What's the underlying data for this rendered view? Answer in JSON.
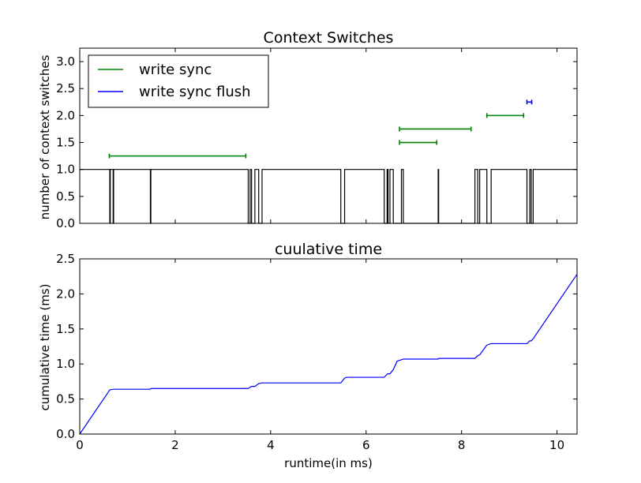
{
  "chart_data": [
    {
      "type": "line",
      "title": "Context Switches",
      "xlabel": "",
      "ylabel": "number of context switches",
      "xlim": [
        0,
        10.42
      ],
      "ylim": [
        0,
        3.25
      ],
      "yticks": [
        "0.0",
        "0.5",
        "1.0",
        "1.5",
        "2.0",
        "2.5",
        "3.0"
      ],
      "legend": {
        "position": "top-left",
        "entries": [
          {
            "label": "write sync",
            "color": "#008000"
          },
          {
            "label": "write sync flush",
            "color": "#0000ff"
          }
        ]
      },
      "series": [
        {
          "color": "#000000",
          "kind": "step",
          "x": [
            0,
            0.63,
            0.63,
            0.64,
            0.64,
            0.7,
            0.7,
            0.71,
            0.71,
            1.48,
            1.48,
            1.49,
            1.49,
            3.53,
            3.53,
            3.57,
            3.57,
            3.6,
            3.6,
            3.67,
            3.67,
            3.75,
            3.75,
            3.82,
            3.82,
            5.47,
            5.47,
            5.55,
            5.55,
            6.38,
            6.38,
            6.44,
            6.44,
            6.46,
            6.46,
            6.5,
            6.5,
            6.57,
            6.57,
            6.74,
            6.74,
            6.78,
            6.78,
            7.51,
            7.51,
            7.52,
            7.52,
            8.28,
            8.28,
            8.34,
            8.34,
            8.38,
            8.38,
            8.53,
            8.53,
            8.62,
            8.62,
            9.37,
            9.37,
            9.43,
            9.43,
            9.46,
            9.46,
            9.5,
            9.5,
            10.42
          ],
          "y": [
            1,
            1,
            0,
            0,
            1,
            1,
            0,
            0,
            1,
            1,
            0,
            0,
            1,
            1,
            0,
            0,
            1,
            1,
            0,
            0,
            1,
            1,
            0,
            0,
            1,
            1,
            0,
            0,
            1,
            1,
            0,
            0,
            1,
            1,
            0,
            0,
            1,
            1,
            0,
            0,
            1,
            1,
            0,
            0,
            1,
            1,
            0,
            0,
            1,
            1,
            0,
            0,
            1,
            1,
            0,
            0,
            1,
            1,
            0,
            0,
            1,
            1,
            0,
            0,
            1,
            1
          ]
        }
      ],
      "intervals": [
        {
          "series": "write sync",
          "color": "#008000",
          "x_start": 0.62,
          "x_end": 3.48,
          "y": 1.25
        },
        {
          "series": "write sync",
          "color": "#008000",
          "x_start": 6.7,
          "x_end": 7.48,
          "y": 1.5
        },
        {
          "series": "write sync",
          "color": "#008000",
          "x_start": 6.7,
          "x_end": 8.2,
          "y": 1.75
        },
        {
          "series": "write sync",
          "color": "#008000",
          "x_start": 8.53,
          "x_end": 9.3,
          "y": 2.0
        },
        {
          "series": "write sync flush",
          "color": "#0000ff",
          "x_start": 9.37,
          "x_end": 9.47,
          "y": 2.25
        }
      ]
    },
    {
      "type": "line",
      "title": "cuulative time",
      "xlabel": "runtime(in ms)",
      "ylabel": "cumulative time (ms)",
      "xlim": [
        0,
        10.42
      ],
      "ylim": [
        0,
        2.5
      ],
      "xticks": [
        "0",
        "2",
        "4",
        "6",
        "8",
        "10"
      ],
      "yticks": [
        "0.0",
        "0.5",
        "1.0",
        "1.5",
        "2.0",
        "2.5"
      ],
      "series": [
        {
          "color": "#0000ff",
          "x": [
            0,
            0.63,
            0.7,
            1.48,
            1.5,
            3.53,
            3.6,
            3.67,
            3.75,
            3.82,
            5.47,
            5.55,
            5.6,
            6.38,
            6.45,
            6.5,
            6.57,
            6.65,
            6.74,
            6.78,
            7.51,
            7.52,
            8.28,
            8.34,
            8.38,
            8.53,
            8.62,
            9.37,
            9.43,
            9.46,
            9.5,
            10.42
          ],
          "y": [
            0,
            0.63,
            0.64,
            0.64,
            0.65,
            0.65,
            0.68,
            0.68,
            0.72,
            0.73,
            0.73,
            0.8,
            0.81,
            0.81,
            0.86,
            0.86,
            0.92,
            1.04,
            1.06,
            1.07,
            1.07,
            1.08,
            1.08,
            1.12,
            1.13,
            1.27,
            1.29,
            1.29,
            1.33,
            1.33,
            1.36,
            2.28
          ]
        }
      ]
    }
  ]
}
